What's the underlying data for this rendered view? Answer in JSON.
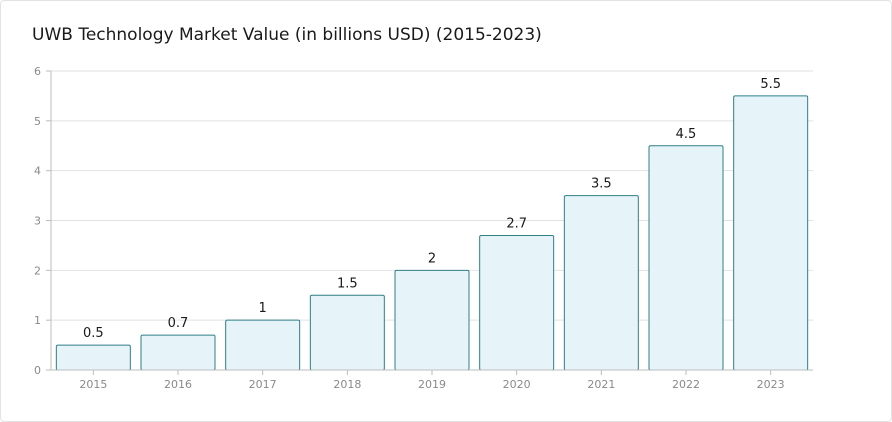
{
  "colors": {
    "bar_fill": "#e6f4fa",
    "bar_stroke": "#2f7f86",
    "grid": "#e2e2e2",
    "axis": "#bdbdbd"
  },
  "chart_data": {
    "type": "bar",
    "title": "UWB Technology Market Value (in billions USD) (2015-2023)",
    "xlabel": "",
    "ylabel": "",
    "categories": [
      "2015",
      "2016",
      "2017",
      "2018",
      "2019",
      "2020",
      "2021",
      "2022",
      "2023"
    ],
    "values": [
      0.5,
      0.7,
      1,
      1.5,
      2,
      2.7,
      3.5,
      4.5,
      5.5
    ],
    "data_labels": [
      "0.5",
      "0.7",
      "1",
      "1.5",
      "2",
      "2.7",
      "3.5",
      "4.5",
      "5.5"
    ],
    "ylim": [
      0,
      6
    ],
    "yticks": [
      "0",
      "1",
      "2",
      "3",
      "4",
      "5",
      "6"
    ],
    "grid": true,
    "legend": "none"
  }
}
